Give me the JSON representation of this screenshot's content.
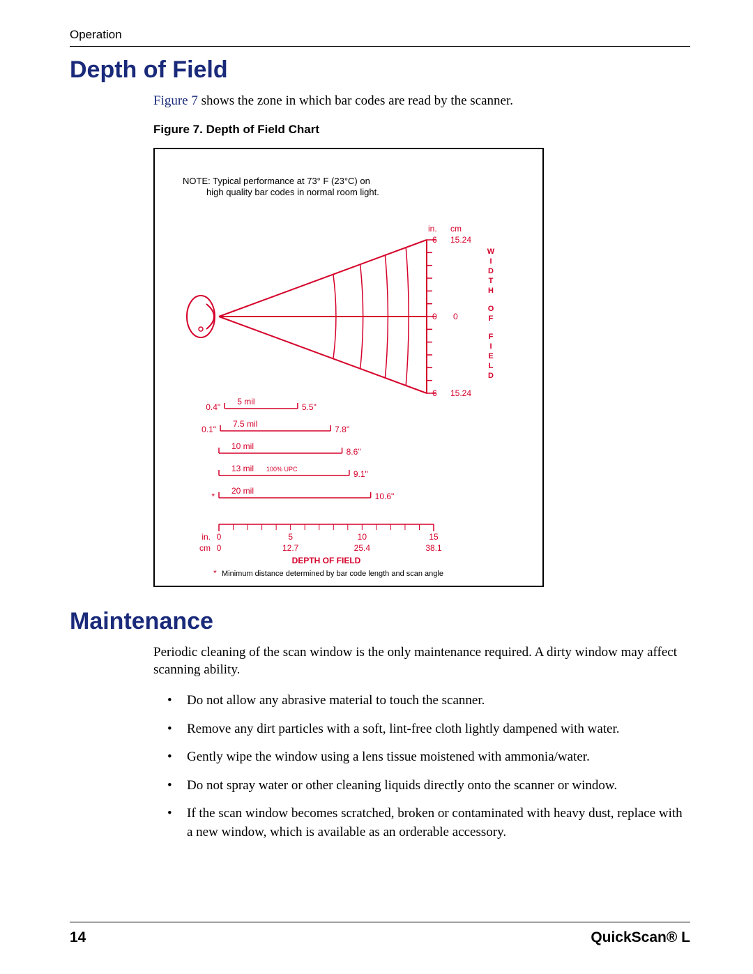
{
  "header": {
    "section_label": "Operation"
  },
  "section1": {
    "title": "Depth of Field",
    "intro_link": "Figure 7",
    "intro_rest": " shows the zone in which bar codes are read by the scanner.",
    "figure_caption": "Figure 7. Depth of Field Chart"
  },
  "chart": {
    "colors": {
      "red": "#d5002a",
      "black": "#000000"
    },
    "note_line1": "NOTE: Typical performance at 73° F (23°C) on",
    "note_line2": "high quality bar codes in normal room light.",
    "unit_in": "in.",
    "unit_cm": "cm",
    "y_top_in": "6",
    "y_top_cm": "15.24",
    "y_mid_in": "0",
    "y_mid_cm": "0",
    "y_bot_in": "6",
    "y_bot_cm": "15.24",
    "vlabel": "WIDTH OF FIELD",
    "bars": [
      {
        "mil": "5 mil",
        "left": "0.4\"",
        "right": "5.5\""
      },
      {
        "mil": "7.5 mil",
        "left": "0.1\"",
        "right": "7.8\""
      },
      {
        "mil": "10 mil",
        "left": "",
        "right": "8.6\""
      },
      {
        "mil": "13 mil",
        "left": "",
        "right": "9.1\"",
        "extra": "100% UPC"
      },
      {
        "mil": "20 mil",
        "left": "*",
        "right": "10.6\""
      }
    ],
    "ruler_in": [
      "0",
      "5",
      "10",
      "15"
    ],
    "ruler_cm": [
      "0",
      "12.7",
      "25.4",
      "38.1"
    ],
    "ruler_label_in": "in.",
    "ruler_label_cm": "cm",
    "bottom_title": "DEPTH OF FIELD",
    "footnote_mark": "*",
    "footnote": "Minimum distance determined by bar code length and scan angle"
  },
  "section2": {
    "title": "Maintenance",
    "intro": "Periodic cleaning of the scan window is the only maintenance required. A dirty window may affect scanning ability.",
    "bullets": [
      "Do not allow any abrasive material to touch the scanner.",
      "Remove any dirt particles with a soft, lint-free cloth lightly dampened with water.",
      "Gently wipe the window using a lens tissue moistened with ammonia/water.",
      "Do not spray water or other cleaning liquids directly onto the scanner or window.",
      "If the scan window becomes scratched, broken or contaminated with heavy dust, replace with a new window, which is available as an orderable accessory."
    ]
  },
  "footer": {
    "page": "14",
    "product": "QuickScan® L"
  }
}
